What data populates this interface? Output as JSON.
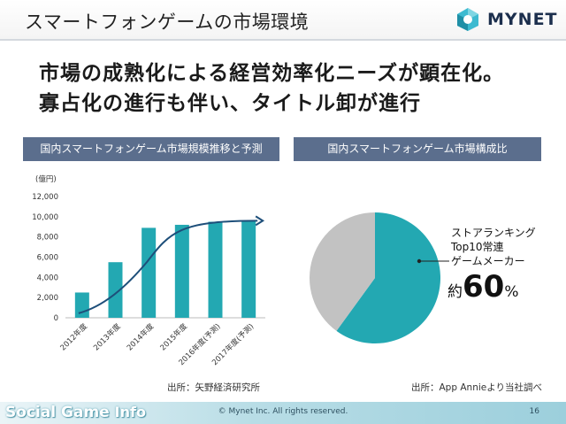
{
  "slide": {
    "title": "スマートフォンゲームの市場環境",
    "headline_1": "市場の成熟化による経営効率化ニーズが顕在化。",
    "headline_2": "寡占化の進行も伴い、タイトル卸が進行"
  },
  "logo": {
    "text": "MYNET",
    "icon": "mynet-logo-icon",
    "color": "#1c2f4d",
    "accent": "#3dbad0"
  },
  "left_panel": {
    "header": "国内スマートフォンゲーム市場規模推移と予測",
    "source": "出所：矢野経済研究所"
  },
  "right_panel": {
    "header": "国内スマートフォンゲーム市場構成比",
    "source": "出所：App Annieより当社調べ"
  },
  "pie_annotation": {
    "line1": "ストアランキング",
    "line2": "Top10常連",
    "line3": "ゲームメーカー",
    "prefix": "約",
    "value": "60",
    "unit": "%"
  },
  "footer": {
    "watermark_a": "Social Game",
    "watermark_b": "Info",
    "copyright": "© Mynet Inc. All rights reserved.",
    "page": "16"
  },
  "colors": {
    "bar": "#23a8b2",
    "trend": "#1e4f7a",
    "pie_main": "#23a8b2",
    "pie_rest": "#c2c2c2",
    "header_bg": "#5b6e8d"
  },
  "chart_data": [
    {
      "type": "bar",
      "unit_label": "(億円)",
      "categories": [
        "2012年度",
        "2013年度",
        "2014年度",
        "2015年度",
        "2016年度(予測)",
        "2017年度(予測)"
      ],
      "values": [
        2500,
        5500,
        8900,
        9200,
        9500,
        9600
      ],
      "ylim": [
        0,
        12000
      ],
      "yticks": [
        0,
        2000,
        4000,
        6000,
        8000,
        10000,
        12000
      ],
      "ytick_labels": [
        "0",
        "2,000",
        "4,000",
        "6,000",
        "8,000",
        "10,000",
        "12,000"
      ],
      "trend": "arrow-curve",
      "grid": false
    },
    {
      "type": "pie",
      "slices": [
        {
          "label": "ストアランキングTop10常連ゲームメーカー",
          "value": 60
        },
        {
          "label": "",
          "value": 40
        }
      ]
    }
  ]
}
